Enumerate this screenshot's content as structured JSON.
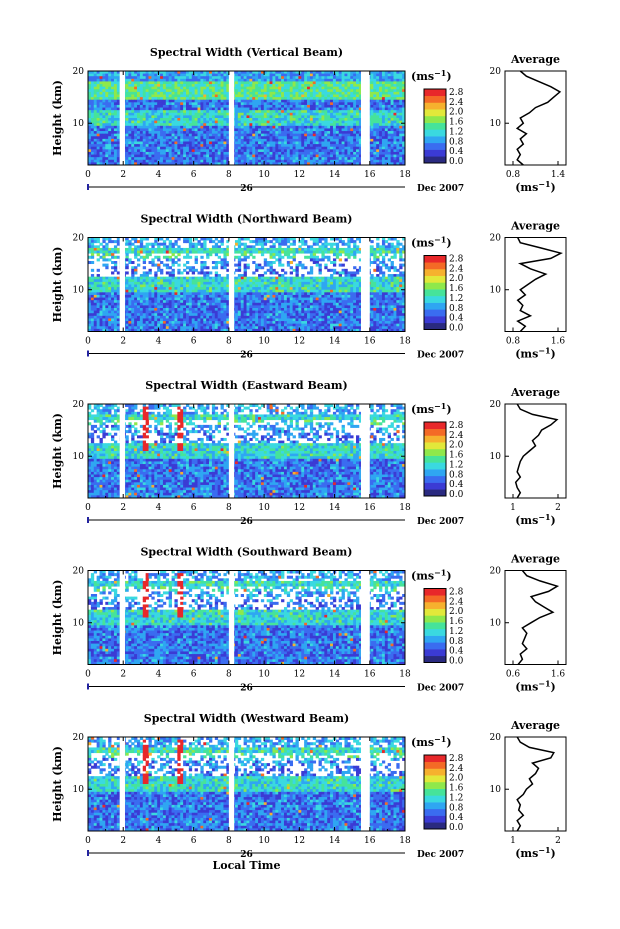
{
  "colors": {
    "colormap": [
      "#2a2a80",
      "#3b3bd4",
      "#3a6cf0",
      "#2fa6f2",
      "#3ad9e0",
      "#46e39a",
      "#8fe84b",
      "#e2e83a",
      "#f6b12e",
      "#f46a26",
      "#e8282a"
    ],
    "gap": "#ffffff",
    "frame": "#000000"
  },
  "figure": {
    "xlabel": "Local Time",
    "date_label": "Dec 2007",
    "day_label": "26"
  },
  "chart_data": [
    {
      "type": "heatmap",
      "title": "Spectral Width (Vertical Beam)",
      "ylabel": "Height (km)",
      "xlim": [
        0,
        18
      ],
      "ylim": [
        2,
        20
      ],
      "xticks": [
        0,
        2,
        4,
        6,
        8,
        10,
        12,
        14,
        16,
        18
      ],
      "yticks": [
        10,
        20
      ],
      "data_gaps_hours": [
        [
          1.8,
          2.1
        ],
        [
          8.0,
          8.3
        ],
        [
          15.5,
          16.0
        ]
      ],
      "colorbar": {
        "unit": "(ms",
        "unit_exp": "−1",
        "unit_close": ")",
        "ticks": [
          "0.0",
          "0.4",
          "0.8",
          "1.2",
          "1.6",
          "2.0",
          "2.4",
          "2.8"
        ]
      },
      "average_profile": {
        "title": "Average",
        "xlabel": "(ms",
        "xlabel_exp": "−1",
        "xlabel_close": ")",
        "xticks": [
          "0.8",
          "1.4"
        ],
        "yticks": [
          "10",
          "20"
        ],
        "xlim": [
          0.6,
          1.6
        ],
        "ylim": [
          2,
          20
        ],
        "height_km": [
          2,
          3,
          4,
          5,
          6,
          7,
          8,
          9,
          10,
          11,
          12,
          13,
          14,
          15,
          16,
          17,
          18,
          19,
          20
        ],
        "width_ms": [
          0.9,
          0.8,
          0.85,
          0.8,
          0.9,
          0.85,
          0.95,
          0.8,
          0.9,
          0.85,
          1.0,
          1.1,
          1.3,
          1.4,
          1.5,
          1.35,
          1.15,
          0.95,
          0.85
        ]
      }
    },
    {
      "type": "heatmap",
      "title": "Spectral Width (Northward Beam)",
      "ylabel": "Height (km)",
      "xlim": [
        0,
        18
      ],
      "ylim": [
        2,
        20
      ],
      "xticks": [
        0,
        2,
        4,
        6,
        8,
        10,
        12,
        14,
        16,
        18
      ],
      "yticks": [
        10,
        20
      ],
      "data_gaps_hours": [
        [
          1.8,
          2.1
        ],
        [
          8.0,
          8.3
        ],
        [
          15.5,
          16.0
        ]
      ],
      "colorbar": {
        "unit": "(ms",
        "unit_exp": "−1",
        "unit_close": ")",
        "ticks": [
          "0.0",
          "0.4",
          "0.8",
          "1.2",
          "1.6",
          "2.0",
          "2.4",
          "2.8"
        ]
      },
      "average_profile": {
        "title": "Average",
        "xlabel": "(ms",
        "xlabel_exp": "−1",
        "xlabel_close": ")",
        "xticks": [
          "0.8",
          "1.6"
        ],
        "yticks": [
          "10",
          "20"
        ],
        "xlim": [
          0.6,
          1.8
        ],
        "ylim": [
          2,
          20
        ],
        "height_km": [
          2,
          3,
          4,
          5,
          6,
          7,
          8,
          9,
          10,
          11,
          12,
          13,
          14,
          15,
          16,
          17,
          18,
          19,
          20
        ],
        "width_ms": [
          0.9,
          1.0,
          0.85,
          1.1,
          0.9,
          0.95,
          0.85,
          1.0,
          0.9,
          1.05,
          1.2,
          1.4,
          1.1,
          0.9,
          1.5,
          1.7,
          1.3,
          0.9,
          0.85
        ]
      }
    },
    {
      "type": "heatmap",
      "title": "Spectral Width (Eastward Beam)",
      "ylabel": "Height (km)",
      "xlim": [
        0,
        18
      ],
      "ylim": [
        2,
        20
      ],
      "xticks": [
        0,
        2,
        4,
        6,
        8,
        10,
        12,
        14,
        16,
        18
      ],
      "yticks": [
        10,
        20
      ],
      "data_gaps_hours": [
        [
          1.8,
          2.1
        ],
        [
          8.0,
          8.3
        ],
        [
          15.5,
          16.0
        ]
      ],
      "colorbar": {
        "unit": "(ms",
        "unit_exp": "−1",
        "unit_close": ")",
        "ticks": [
          "0.0",
          "0.4",
          "0.8",
          "1.2",
          "1.6",
          "2.0",
          "2.4",
          "2.8"
        ]
      },
      "average_profile": {
        "title": "Average",
        "xlabel": "(ms",
        "xlabel_exp": "−1",
        "xlabel_close": ")",
        "xticks": [
          "1",
          "2"
        ],
        "yticks": [
          "10",
          "20"
        ],
        "xlim": [
          0.5,
          2.5
        ],
        "ylim": [
          2,
          20
        ],
        "height_km": [
          2,
          3,
          4,
          5,
          6,
          7,
          8,
          9,
          10,
          11,
          12,
          13,
          14,
          15,
          16,
          17,
          18,
          19,
          20
        ],
        "width_ms": [
          0.9,
          1.0,
          0.9,
          0.85,
          1.0,
          0.9,
          0.95,
          1.0,
          1.1,
          1.3,
          1.5,
          1.4,
          1.6,
          1.7,
          2.0,
          2.2,
          1.4,
          1.0,
          0.9
        ]
      }
    },
    {
      "type": "heatmap",
      "title": "Spectral Width (Southward Beam)",
      "ylabel": "Height (km)",
      "xlim": [
        0,
        18
      ],
      "ylim": [
        2,
        20
      ],
      "xticks": [
        0,
        2,
        4,
        6,
        8,
        10,
        12,
        14,
        16,
        18
      ],
      "yticks": [
        10,
        20
      ],
      "data_gaps_hours": [
        [
          1.8,
          2.1
        ],
        [
          8.0,
          8.3
        ],
        [
          15.5,
          16.0
        ]
      ],
      "colorbar": {
        "unit": "(ms",
        "unit_exp": "−1",
        "unit_close": ")",
        "ticks": [
          "0.0",
          "0.4",
          "0.8",
          "1.2",
          "1.6",
          "2.0",
          "2.4",
          "2.8"
        ]
      },
      "average_profile": {
        "title": "Average",
        "xlabel": "(ms",
        "xlabel_exp": "−1",
        "xlabel_close": ")",
        "xticks": [
          "0.6",
          "1.6"
        ],
        "yticks": [
          "10",
          "20"
        ],
        "xlim": [
          0.4,
          1.8
        ],
        "ylim": [
          2,
          20
        ],
        "height_km": [
          2,
          3,
          4,
          5,
          6,
          7,
          8,
          9,
          10,
          11,
          12,
          13,
          14,
          15,
          16,
          17,
          18,
          19,
          20
        ],
        "width_ms": [
          0.7,
          0.8,
          0.75,
          0.9,
          0.8,
          0.85,
          0.9,
          0.8,
          1.0,
          1.2,
          1.5,
          1.3,
          1.1,
          1.0,
          1.4,
          1.6,
          1.2,
          0.9,
          0.8
        ]
      }
    },
    {
      "type": "heatmap",
      "title": "Spectral Width (Westward Beam)",
      "ylabel": "Height (km)",
      "xlim": [
        0,
        18
      ],
      "ylim": [
        2,
        20
      ],
      "xticks": [
        0,
        2,
        4,
        6,
        8,
        10,
        12,
        14,
        16,
        18
      ],
      "yticks": [
        10,
        20
      ],
      "data_gaps_hours": [
        [
          1.8,
          2.1
        ],
        [
          8.0,
          8.3
        ],
        [
          15.5,
          16.0
        ]
      ],
      "colorbar": {
        "unit": "(ms",
        "unit_exp": "−1",
        "unit_close": ")",
        "ticks": [
          "0.0",
          "0.4",
          "0.8",
          "1.2",
          "1.6",
          "2.0",
          "2.4",
          "2.8"
        ]
      },
      "average_profile": {
        "title": "Average",
        "xlabel": "(ms",
        "xlabel_exp": "−1",
        "xlabel_close": ")",
        "xticks": [
          "1",
          "2"
        ],
        "yticks": [
          "10",
          "20"
        ],
        "xlim": [
          0.5,
          2.5
        ],
        "ylim": [
          2,
          20
        ],
        "height_km": [
          2,
          3,
          4,
          5,
          6,
          7,
          8,
          9,
          10,
          11,
          12,
          13,
          14,
          15,
          16,
          17,
          18,
          19,
          20
        ],
        "width_ms": [
          0.9,
          1.0,
          0.9,
          1.1,
          0.95,
          1.0,
          0.9,
          1.1,
          1.2,
          1.4,
          1.3,
          1.5,
          1.6,
          1.4,
          2.0,
          2.1,
          1.3,
          1.0,
          0.9
        ]
      }
    }
  ]
}
